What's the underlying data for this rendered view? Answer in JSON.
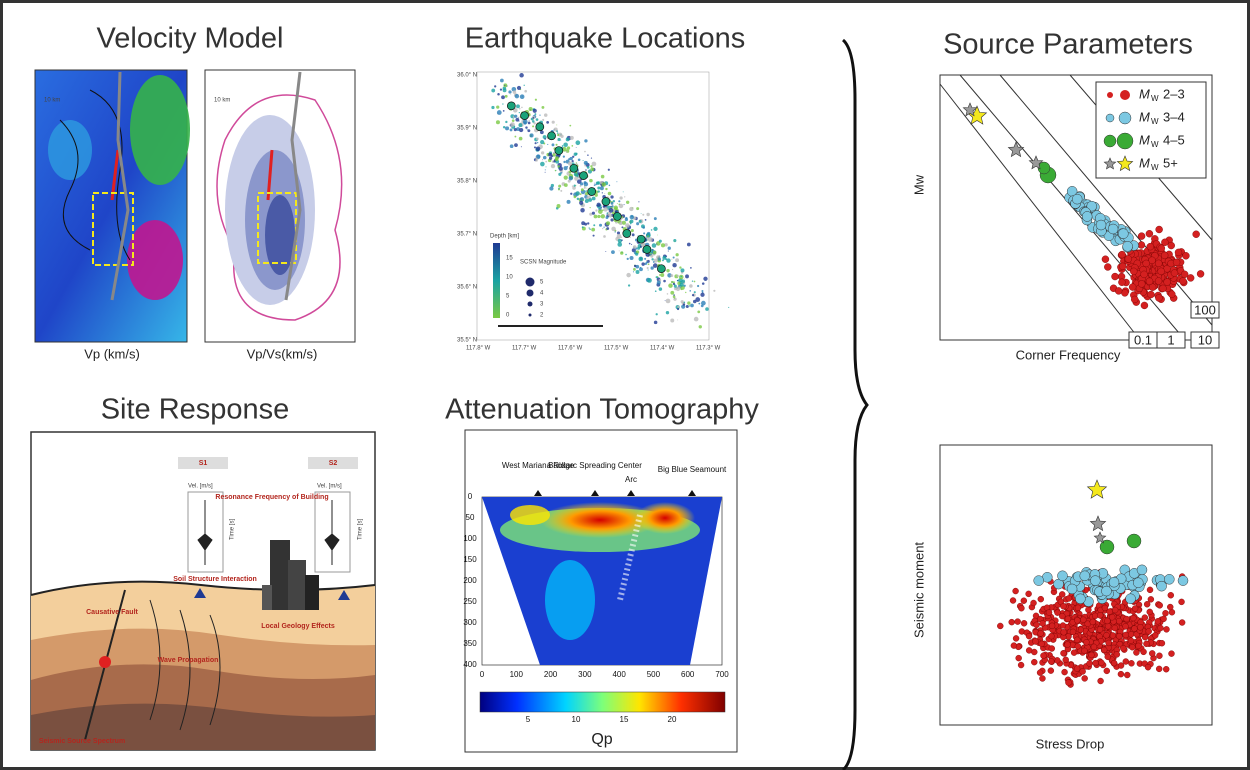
{
  "velocity_model": {
    "title": "Velocity Model",
    "maps": [
      {
        "scale": "10 km",
        "label": "Vp (km/s)"
      },
      {
        "scale": "10 km",
        "label": "Vp/Vs(km/s)"
      }
    ]
  },
  "earthquake_locations": {
    "title": "Earthquake Locations",
    "lat_ticks": [
      "36.0° N",
      "35.9° N",
      "35.8° N",
      "35.7° N",
      "35.6° N",
      "35.5° N"
    ],
    "lon_ticks": [
      "117.8° W",
      "117.7° W",
      "117.6° W",
      "117.5° W",
      "117.4° W",
      "117.3° W"
    ],
    "legend": {
      "depth_title": "Depth [km]",
      "depth_ticks": [
        15,
        10,
        5,
        0
      ],
      "magnitude_title": "SCSN Magnitude",
      "magnitudes": [
        5,
        4,
        3,
        2
      ]
    }
  },
  "source_parameters": {
    "title": "Source Parameters",
    "plot1": {
      "y_label": "Mw",
      "x_label": "Corner Frequency",
      "legend": [
        {
          "symbol": "M",
          "subscript": "W",
          "range": "2–3"
        },
        {
          "symbol": "M",
          "subscript": "W",
          "range": "3–4"
        },
        {
          "symbol": "M",
          "subscript": "W",
          "range": "4–5"
        },
        {
          "symbol": "M",
          "subscript": "W",
          "range": "5+"
        }
      ],
      "stress_lines": [
        "0.1",
        "1",
        "10",
        "100"
      ]
    },
    "plot2": {
      "y_label": "Seismic moment",
      "x_label": "Stress Drop"
    }
  },
  "site_response": {
    "title": "Site Response",
    "stations": [
      {
        "name": "S1",
        "vel_label": "Vel. [m/s]",
        "time_label": "Time [s]"
      },
      {
        "name": "S2",
        "vel_label": "Vel. [m/s]",
        "time_label": "Time [s]"
      }
    ],
    "labels": [
      "Resonance Frequency of Building",
      "Soil Structure Interaction",
      "Causative Fault",
      "Wave Propagation",
      "Local Geology Effects",
      "Seismic Source Spectrum"
    ]
  },
  "attenuation_tomography": {
    "title": "Attenuation Tomography",
    "features": [
      "West Mariana Ridge",
      "Backarc Spreading Center",
      "Arc",
      "Big Blue Seamount"
    ],
    "y_ticks": [
      0,
      50,
      100,
      150,
      200,
      250,
      300,
      350,
      400
    ],
    "x_ticks": [
      0,
      100,
      200,
      300,
      400,
      500,
      600,
      700
    ],
    "colorbar_ticks": [
      5,
      10,
      15,
      20
    ],
    "colorbar_label": "Qp"
  }
}
